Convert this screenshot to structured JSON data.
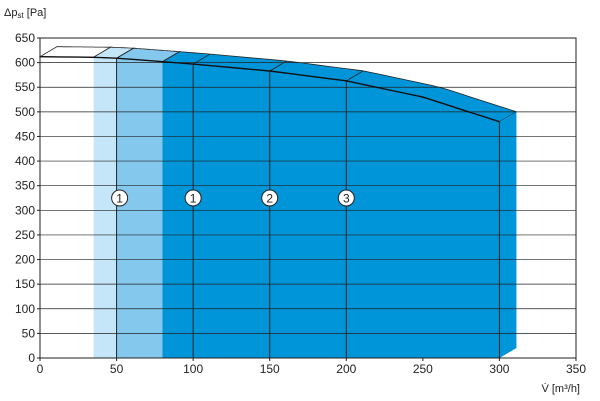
{
  "chart_data": {
    "type": "area",
    "title": "",
    "ylabel": "Δp",
    "ylabel_sub": "st",
    "ylabel_unit": " [Pa]",
    "xlabel": "V̇ [m³/h]",
    "xlim": [
      0,
      350
    ],
    "ylim": [
      0,
      650
    ],
    "x_ticks": [
      0,
      50,
      100,
      150,
      200,
      250,
      300,
      350
    ],
    "y_ticks": [
      0,
      50,
      100,
      150,
      200,
      250,
      300,
      350,
      400,
      450,
      500,
      550,
      600,
      650
    ],
    "grid": true,
    "max_curve": {
      "x": [
        0,
        35,
        50,
        80,
        100,
        150,
        200,
        250,
        300
      ],
      "y": [
        612,
        611,
        609,
        602,
        597,
        583,
        563,
        530,
        480
      ]
    },
    "ranges": [
      {
        "x_start": 35,
        "x_end": 50,
        "color": "#c5e6f8"
      },
      {
        "x_start": 50,
        "x_end": 80,
        "color": "#85c8ee"
      },
      {
        "x_start": 80,
        "x_end": 300,
        "color": "#0094d9"
      }
    ],
    "speed_lines": [
      50,
      100,
      150,
      200
    ],
    "speed_markers": [
      {
        "label": "1",
        "x": 52,
        "y": 325,
        "style": "roman"
      },
      {
        "label": "1",
        "x": 100,
        "y": 325,
        "style": "arabic"
      },
      {
        "label": "2",
        "x": 150,
        "y": 325,
        "style": "arabic"
      },
      {
        "label": "3",
        "x": 200,
        "y": 325,
        "style": "arabic"
      }
    ]
  }
}
